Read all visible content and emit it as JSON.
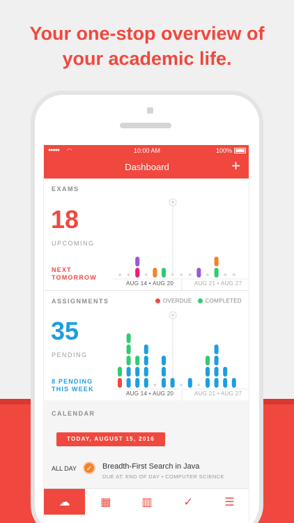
{
  "headline": {
    "line1": "Your one-stop overview of",
    "line2": "your academic life."
  },
  "status_bar": {
    "signal": "●●●●●",
    "time": "10:00 AM",
    "battery": "100%"
  },
  "header": {
    "title": "Dashboard",
    "add_label": "+"
  },
  "exams": {
    "section_label": "EXAMS",
    "count": "18",
    "count_label": "UPCOMING",
    "next_line1": "NEXT",
    "next_line2": "TOMORROW",
    "range_current": "AUG 14 • AUG 20",
    "range_next": "AUG 21 • AUG 27",
    "days": [
      {
        "stack": []
      },
      {
        "stack": []
      },
      {
        "stack": [
          "#e8207a",
          "#9b59d0"
        ]
      },
      {
        "stack": []
      },
      {
        "stack": [
          "#f3832b"
        ]
      },
      {
        "stack": [
          "#2ecc71"
        ]
      },
      {
        "stack": []
      },
      {
        "stack": []
      },
      {
        "stack": []
      },
      {
        "stack": [
          "#9b59d0"
        ]
      },
      {
        "stack": []
      },
      {
        "stack": [
          "#2ecc71",
          "#f3832b"
        ]
      },
      {
        "stack": []
      },
      {
        "stack": []
      }
    ]
  },
  "assignments": {
    "section_label": "ASSIGNMENTS",
    "legend_overdue": "OVERDUE",
    "legend_completed": "COMPLETED",
    "count": "35",
    "count_label": "PENDING",
    "note_line1": "8 PENDING",
    "note_line2": "THIS WEEK",
    "range_current": "AUG 14 • AUG 20",
    "range_next": "AUG 21 • AUG 27",
    "days": [
      {
        "stack": [
          "#f0483e",
          "#2ecc71"
        ]
      },
      {
        "stack": [
          "#1e9ee0",
          "#1e9ee0",
          "#2ecc71",
          "#2ecc71",
          "#2ecc71"
        ]
      },
      {
        "stack": [
          "#1e9ee0",
          "#1e9ee0",
          "#2ecc71"
        ]
      },
      {
        "stack": [
          "#1e9ee0",
          "#1e9ee0",
          "#1e9ee0",
          "#1e9ee0"
        ]
      },
      {
        "stack": []
      },
      {
        "stack": [
          "#1e9ee0",
          "#1e9ee0",
          "#1e9ee0"
        ]
      },
      {
        "stack": [
          "#1e9ee0"
        ]
      },
      {
        "stack": []
      },
      {
        "stack": [
          "#1e9ee0"
        ]
      },
      {
        "stack": []
      },
      {
        "stack": [
          "#1e9ee0",
          "#1e9ee0",
          "#2ecc71"
        ]
      },
      {
        "stack": [
          "#1e9ee0",
          "#1e9ee0",
          "#1e9ee0",
          "#1e9ee0"
        ]
      },
      {
        "stack": [
          "#1e9ee0",
          "#1e9ee0"
        ]
      },
      {
        "stack": [
          "#1e9ee0"
        ]
      }
    ]
  },
  "calendar": {
    "section_label": "CALENDAR",
    "today_label": "TODAY, AUGUST 15, 2016",
    "allday_label": "ALL DAY",
    "event_title": "Breadth-First Search in Java",
    "event_sub": "DUE AT: END OF DAY • COMPUTER SCIENCE",
    "event_icon": "✓"
  },
  "tabbar": {
    "items": [
      {
        "name": "dashboard",
        "icon": "☁"
      },
      {
        "name": "calendar",
        "icon": "▦"
      },
      {
        "name": "classes",
        "icon": "▥"
      },
      {
        "name": "tasks",
        "icon": "✓"
      },
      {
        "name": "menu",
        "icon": "☰"
      }
    ]
  },
  "colors": {
    "accent": "#f0483e",
    "exam_num": "#f0483e",
    "assign_num": "#1e9ee0",
    "assign_note": "#1e9ee0",
    "overdue": "#f0483e",
    "completed": "#2ecc71"
  }
}
